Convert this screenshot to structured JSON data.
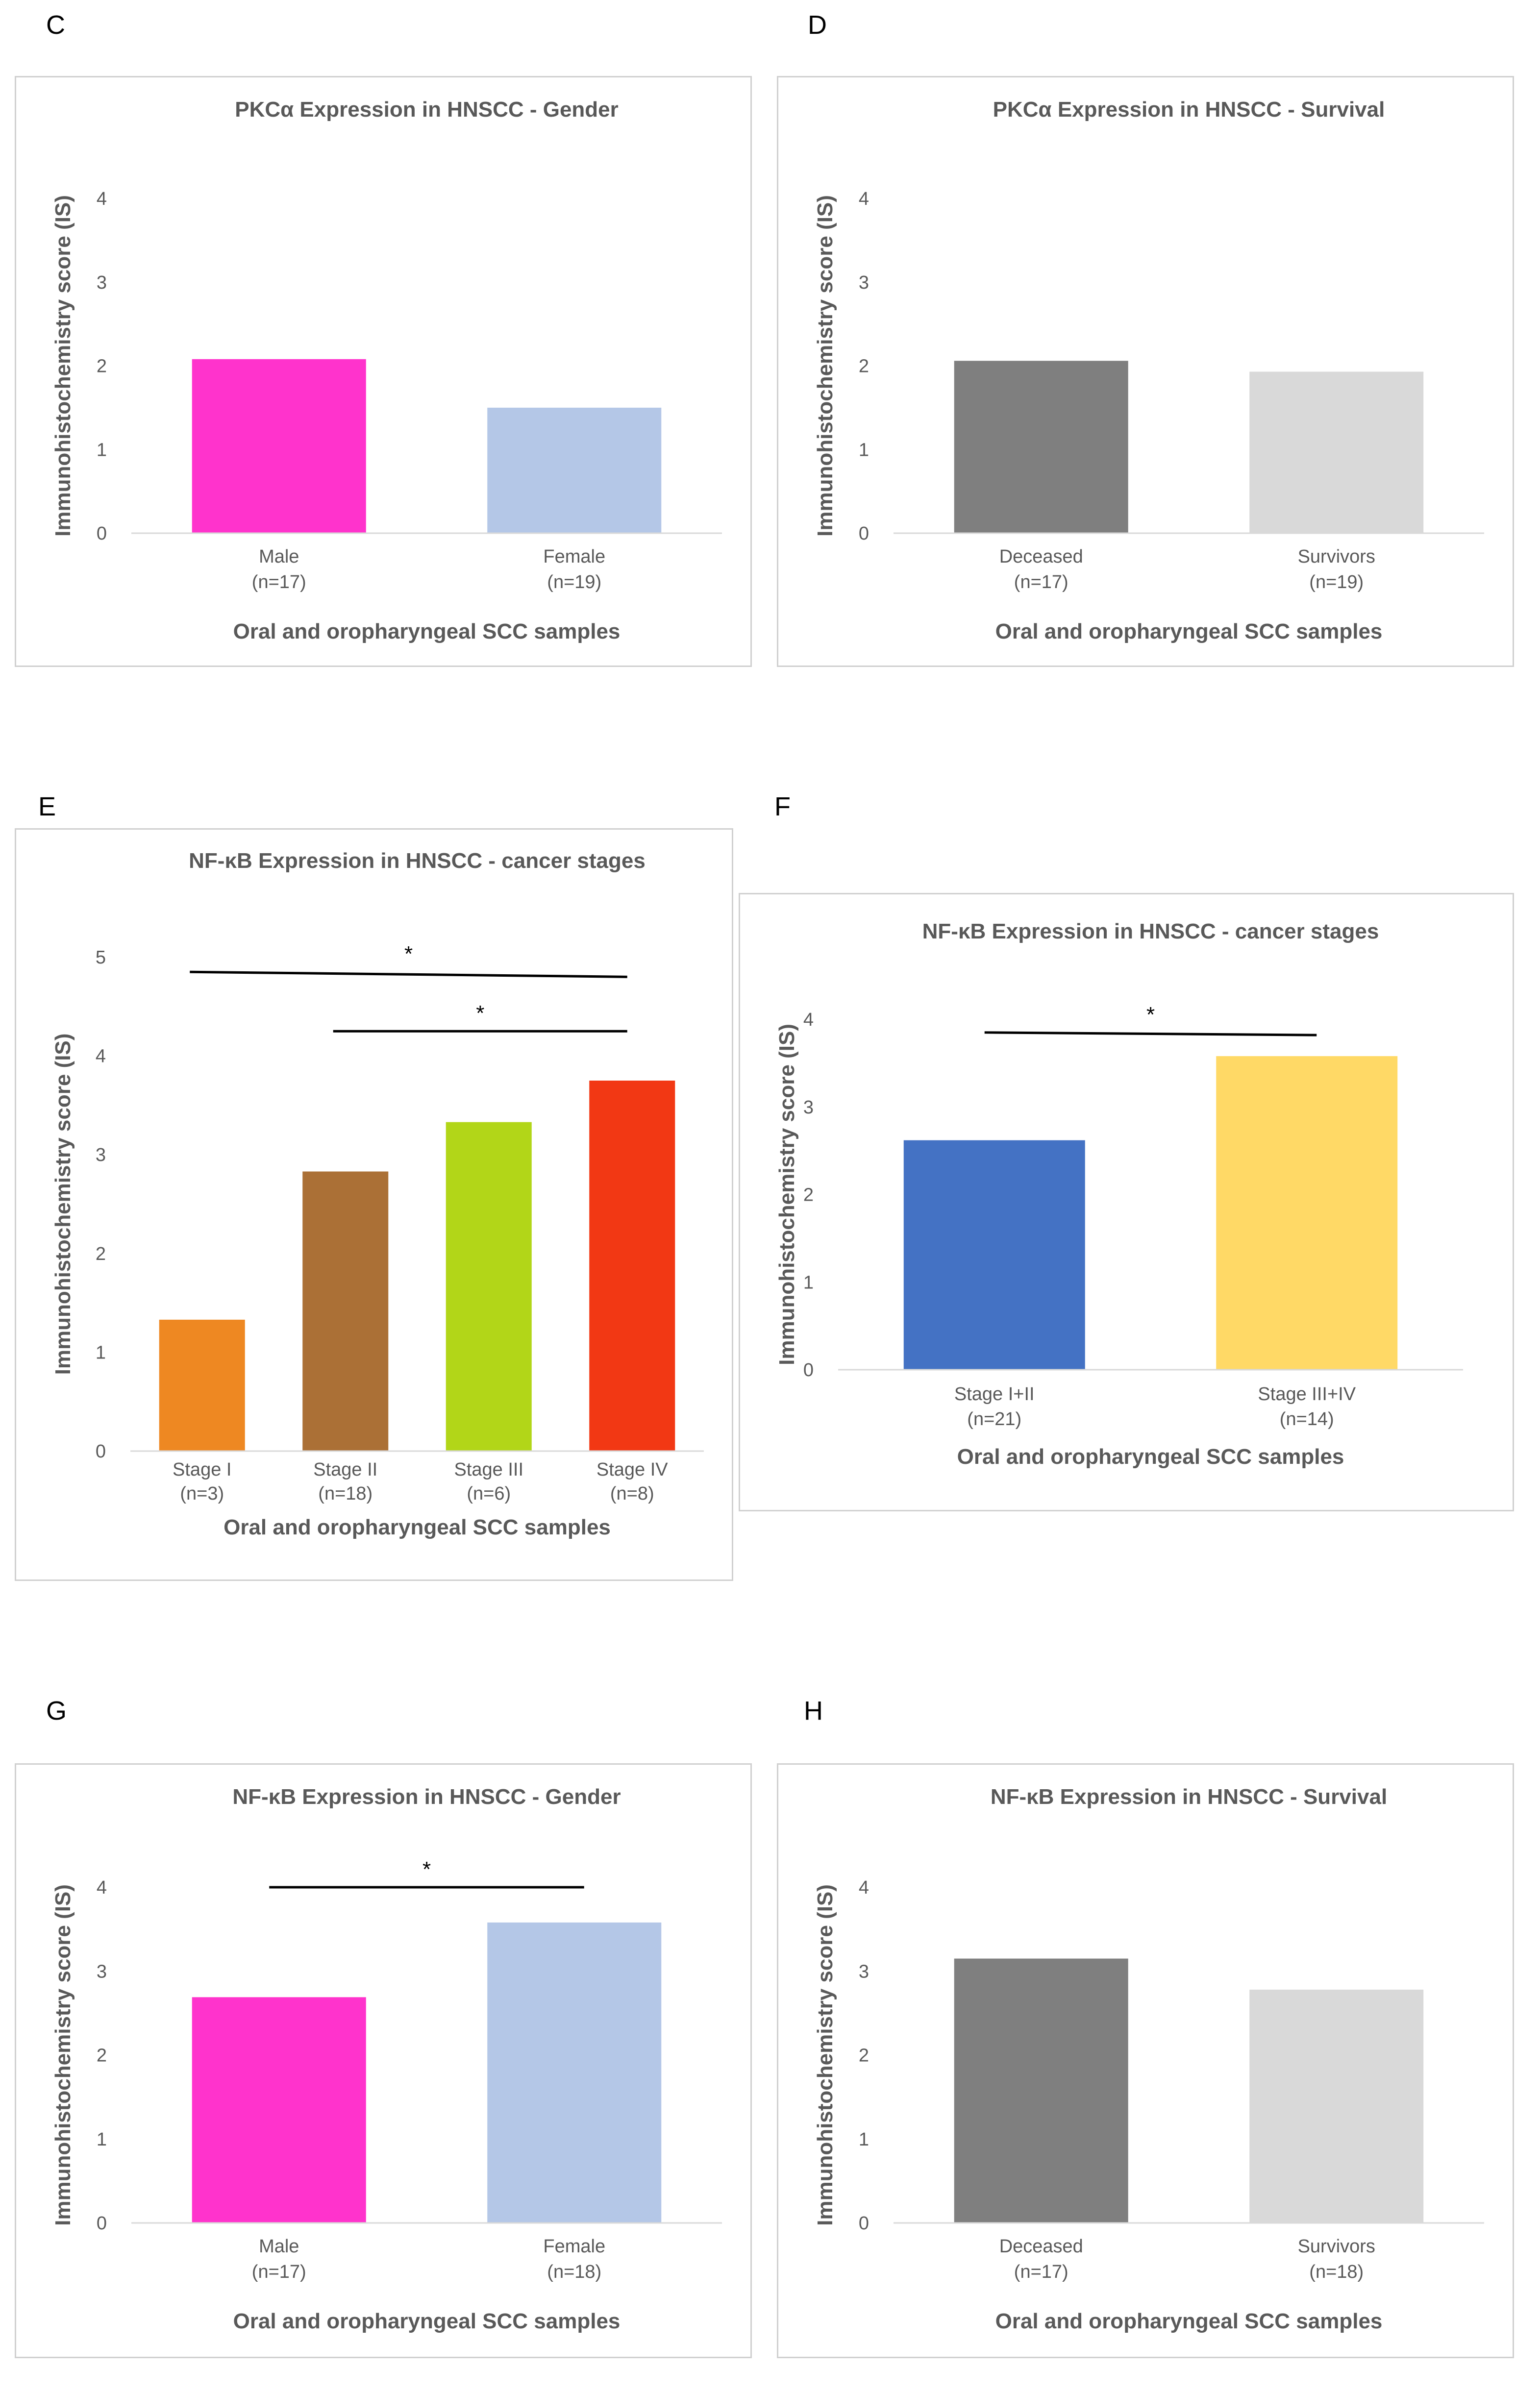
{
  "panels": {
    "C": "C",
    "D": "D",
    "E": "E",
    "F": "F",
    "G": "G",
    "H": "H"
  },
  "chart_data": [
    {
      "id": "C",
      "type": "bar",
      "title": "PKCα Expression in HNSCC - Gender",
      "ylabel": "Immunohistochemistry score (IS)",
      "xlabel": "Oral and oropharyngeal SCC samples",
      "ylim": [
        0,
        4
      ],
      "yticks": [
        0,
        1,
        2,
        3,
        4
      ],
      "categories": [
        [
          "Male",
          "(n=17)"
        ],
        [
          "Female",
          "(n=19)"
        ]
      ],
      "values": [
        2.08,
        1.5
      ],
      "colors": [
        "#ff33cc",
        "#b4c7e7"
      ],
      "significance": []
    },
    {
      "id": "D",
      "type": "bar",
      "title": "PKCα Expression in HNSCC - Survival",
      "ylabel": "Immunohistochemistry score (IS)",
      "xlabel": "Oral and oropharyngeal SCC samples",
      "ylim": [
        0,
        4
      ],
      "yticks": [
        0,
        1,
        2,
        3,
        4
      ],
      "categories": [
        [
          "Deceased",
          "(n=17)"
        ],
        [
          "Survivors",
          "(n=19)"
        ]
      ],
      "values": [
        2.06,
        1.93
      ],
      "colors": [
        "#7f7f7f",
        "#d9d9d9"
      ],
      "significance": []
    },
    {
      "id": "E",
      "type": "bar",
      "title": "NF-κB Expression in HNSCC - cancer stages",
      "ylabel": "Immunohistochemistry score (IS)",
      "xlabel": "Oral and oropharyngeal SCC samples",
      "ylim": [
        0,
        5
      ],
      "yticks": [
        0,
        1,
        2,
        3,
        4,
        5
      ],
      "categories": [
        [
          "Stage I",
          "(n=3)"
        ],
        [
          "Stage II",
          "(n=18)"
        ],
        [
          "Stage III",
          "(n=6)"
        ],
        [
          "Stage IV",
          "(n=8)"
        ]
      ],
      "values": [
        1.33,
        2.83,
        3.33,
        3.75
      ],
      "colors": [
        "#ee8822",
        "#ab7036",
        "#b2d618",
        "#f23814"
      ],
      "significance": [
        {
          "from": 0,
          "to": 3,
          "y1": 4.85,
          "y2": 4.8,
          "label": "*"
        },
        {
          "from": 1,
          "to": 3,
          "y": 4.25,
          "label": "*"
        }
      ]
    },
    {
      "id": "F",
      "type": "bar",
      "title": "NF-κB Expression in HNSCC - cancer stages",
      "ylabel": "Immunohistochemistry score (IS)",
      "xlabel": "Oral and oropharyngeal SCC samples",
      "ylim": [
        0,
        4
      ],
      "yticks": [
        0,
        1,
        2,
        3,
        4
      ],
      "categories": [
        [
          "Stage I+II",
          "(n=21)"
        ],
        [
          "Stage III+IV",
          "(n=14)"
        ]
      ],
      "values": [
        2.62,
        3.58
      ],
      "colors": [
        "#4472c4",
        "#ffd966"
      ],
      "significance": [
        {
          "from": 0,
          "to": 1,
          "y1": 3.85,
          "y2": 3.82,
          "label": "*"
        }
      ]
    },
    {
      "id": "G",
      "type": "bar",
      "title": "NF-κB Expression in HNSCC - Gender",
      "ylabel": "Immunohistochemistry score (IS)",
      "xlabel": "Oral and oropharyngeal SCC samples",
      "ylim": [
        0,
        4
      ],
      "yticks": [
        0,
        1,
        2,
        3,
        4
      ],
      "categories": [
        [
          "Male",
          "(n=17)"
        ],
        [
          "Female",
          "(n=18)"
        ]
      ],
      "values": [
        2.69,
        3.58
      ],
      "colors": [
        "#ff33cc",
        "#b4c7e7"
      ],
      "significance": [
        {
          "from": 0,
          "to": 1,
          "y": 4.0,
          "label": "*"
        }
      ]
    },
    {
      "id": "H",
      "type": "bar",
      "title": "NF-κB Expression in HNSCC - Survival",
      "ylabel": "Immunohistochemistry score (IS)",
      "xlabel": "Oral and oropharyngeal SCC samples",
      "ylim": [
        0,
        4
      ],
      "yticks": [
        0,
        1,
        2,
        3,
        4
      ],
      "categories": [
        [
          "Deceased",
          "(n=17)"
        ],
        [
          "Survivors",
          "(n=18)"
        ]
      ],
      "values": [
        3.15,
        2.78
      ],
      "colors": [
        "#7f7f7f",
        "#d9d9d9"
      ],
      "significance": []
    }
  ]
}
